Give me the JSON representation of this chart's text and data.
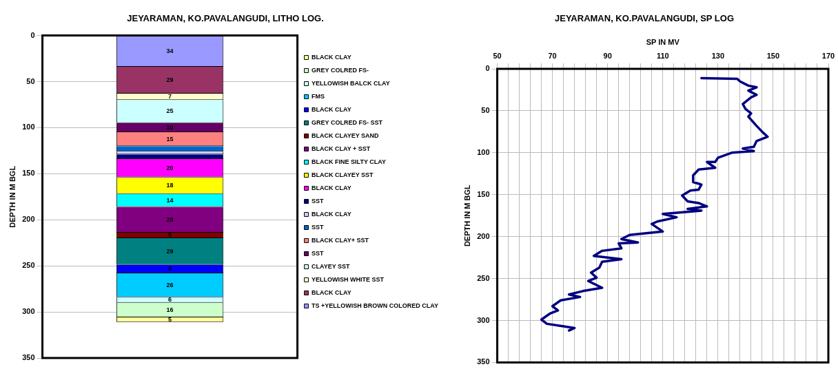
{
  "chart_data": [
    {
      "type": "bar",
      "title": "JEYARAMAN, KO.PAVALANGUDI, LITHO LOG.",
      "ylabel": "DEPTH IN M BGL",
      "categories": [
        null
      ],
      "stacked": true,
      "ylim": [
        350,
        0
      ],
      "yticks": [
        0,
        50,
        100,
        150,
        200,
        250,
        300,
        350
      ],
      "grid": "y",
      "legend": "right",
      "tick_labels": "y",
      "series": [
        {
          "name": "TS +YELLOWISH BROWN COLORED CLAY",
          "color": "#9999ff",
          "values": [
            34
          ],
          "value_labels": [
            "34"
          ]
        },
        {
          "name": "BLACK CLAY",
          "color": "#993366",
          "values": [
            29
          ],
          "value_labels": [
            "29"
          ]
        },
        {
          "name": "YELLOWISH WHITE SST",
          "color": "#ffffcc",
          "values": [
            7
          ],
          "value_labels": [
            "7"
          ]
        },
        {
          "name": "CLAYEY SST",
          "color": "#ccffff",
          "values": [
            25
          ],
          "value_labels": [
            "25"
          ]
        },
        {
          "name": "SST",
          "color": "#660066",
          "values": [
            10
          ],
          "value_labels": [
            "10"
          ]
        },
        {
          "name": "BLACK CLAY+ SST",
          "color": "#ff8080",
          "values": [
            15
          ],
          "value_labels": [
            "15"
          ]
        },
        {
          "name": "SST",
          "color": "#0066cc",
          "values": [
            6
          ],
          "value_labels": [
            null
          ]
        },
        {
          "name": "BLACK CLAY",
          "color": "#ccccff",
          "values": [
            3
          ],
          "value_labels": [
            null
          ]
        },
        {
          "name": "SST",
          "color": "#000080",
          "values": [
            5
          ],
          "value_labels": [
            null
          ]
        },
        {
          "name": "BLACK CLAY",
          "color": "#ff00ff",
          "values": [
            20
          ],
          "value_labels": [
            "20"
          ]
        },
        {
          "name": "BLACK CLAYEY SST",
          "color": "#ffff00",
          "values": [
            18
          ],
          "value_labels": [
            "18"
          ]
        },
        {
          "name": "BLACK FINE SILTY CLAY",
          "color": "#00ffff",
          "values": [
            14
          ],
          "value_labels": [
            "14"
          ]
        },
        {
          "name": "BLACK CLAY + SST",
          "color": "#800080",
          "values": [
            28
          ],
          "value_labels": [
            "28"
          ]
        },
        {
          "name": "BLACK CLAYEY SAND",
          "color": "#800000",
          "values": [
            6
          ],
          "value_labels": [
            "6"
          ]
        },
        {
          "name": "GREY COLRED FS- SST",
          "color": "#008080",
          "values": [
            29
          ],
          "value_labels": [
            "29"
          ]
        },
        {
          "name": "BLACK CLAY",
          "color": "#0000ff",
          "values": [
            9
          ],
          "value_labels": [
            "9"
          ]
        },
        {
          "name": "FMS",
          "color": "#00ccff",
          "values": [
            26
          ],
          "value_labels": [
            "26"
          ]
        },
        {
          "name": "YELLOWISH BALCK CLAY",
          "color": "#ccffff",
          "values": [
            6
          ],
          "value_labels": [
            "6"
          ]
        },
        {
          "name": "GREY COLRED FS-",
          "color": "#ccffcc",
          "values": [
            16
          ],
          "value_labels": [
            "16"
          ]
        },
        {
          "name": "BLACK CLAY",
          "color": "#ffff99",
          "values": [
            5
          ],
          "value_labels": [
            "5"
          ]
        }
      ]
    },
    {
      "type": "line",
      "title": "JEYARAMAN, KO.PAVALANGUDI, SP LOG",
      "xlabel": "SP IN MV",
      "ylabel": "DEPTH IN M BGL",
      "xlim": [
        50,
        170
      ],
      "xticks": [
        50,
        {
          "value": 54,
          "label": null
        },
        {
          "value": 58,
          "label": null
        },
        {
          "value": 62,
          "label": null
        },
        {
          "value": 66,
          "label": null
        },
        70,
        {
          "value": 74,
          "label": null
        },
        {
          "value": 78,
          "label": null
        },
        {
          "value": 82,
          "label": null
        },
        {
          "value": 86,
          "label": null
        },
        90,
        {
          "value": 94,
          "label": null
        },
        {
          "value": 98,
          "label": null
        },
        {
          "value": 102,
          "label": null
        },
        {
          "value": 106,
          "label": null
        },
        110,
        {
          "value": 114,
          "label": null
        },
        {
          "value": 118,
          "label": null
        },
        {
          "value": 122,
          "label": null
        },
        {
          "value": 126,
          "label": null
        },
        130,
        {
          "value": 134,
          "label": null
        },
        {
          "value": 138,
          "label": null
        },
        {
          "value": 142,
          "label": null
        },
        {
          "value": 146,
          "label": null
        },
        150,
        {
          "value": 154,
          "label": null
        },
        {
          "value": 158,
          "label": null
        },
        {
          "value": 162,
          "label": null
        },
        {
          "value": 166,
          "label": null
        },
        170
      ],
      "ylim": [
        350,
        0
      ],
      "yticks": [
        0,
        50,
        100,
        150,
        200,
        250,
        300,
        350
      ],
      "grid": true,
      "marker": "none",
      "line_style": "solid",
      "series": [
        {
          "color": "#000080",
          "x": [
            124,
            137,
            138,
            141,
            144,
            141,
            144,
            142,
            139,
            140,
            142,
            141,
            144,
            146,
            148,
            144,
            143,
            139,
            143,
            135,
            130,
            129,
            126,
            129,
            123,
            121,
            121,
            124,
            123,
            120,
            117,
            119,
            123,
            126,
            119,
            124,
            110,
            115,
            108,
            106,
            110,
            104,
            98,
            95,
            101,
            94,
            95,
            88,
            85,
            95,
            88,
            87,
            84,
            86,
            83,
            88,
            81,
            76,
            80,
            73,
            70,
            72,
            69,
            66,
            68,
            74,
            78,
            76
          ],
          "values": [
            11,
            12,
            15,
            20,
            22,
            26,
            31,
            34,
            42,
            48,
            53,
            57,
            68,
            75,
            81,
            86,
            93,
            95,
            98,
            100,
            106,
            111,
            111,
            118,
            120,
            127,
            135,
            138,
            144,
            145,
            151,
            158,
            160,
            164,
            167,
            169,
            173,
            177,
            182,
            185,
            194,
            196,
            198,
            203,
            207,
            208,
            214,
            217,
            223,
            227,
            230,
            237,
            243,
            249,
            253,
            261,
            265,
            269,
            272,
            276,
            283,
            288,
            292,
            299,
            304,
            307,
            309,
            312
          ]
        }
      ]
    }
  ]
}
